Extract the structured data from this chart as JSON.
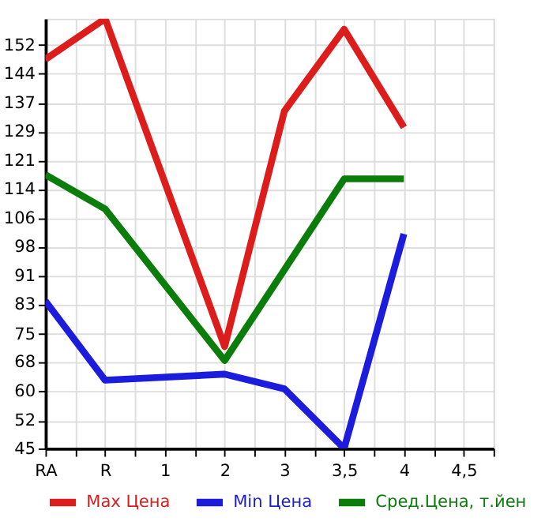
{
  "chart_data": {
    "type": "line",
    "categories": [
      "RA",
      "R",
      "1",
      "2",
      "3",
      "3,5",
      "4",
      "4,5"
    ],
    "series": [
      {
        "name": "Max Цена",
        "color": "#dd1c1c",
        "values": [
          148.2,
          159,
          null,
          72,
          134.5,
          156.2,
          130.2,
          null
        ]
      },
      {
        "name": "Min Цена",
        "color": "#1c1cdd",
        "values": [
          84.1,
          63.1,
          null,
          64.7,
          60.8,
          45,
          101.9,
          null
        ]
      },
      {
        "name": "Сред.Цена, т.йен",
        "color": "#0a7d0a",
        "values": [
          117.6,
          108.5,
          null,
          68.3,
          92.4,
          116.5,
          116.5,
          null
        ]
      }
    ],
    "ylim": [
      45,
      159
    ],
    "yticks": [
      45,
      {
        "value": 52.4,
        "label": "52"
      },
      {
        "value": 60.29,
        "label": "60"
      },
      {
        "value": 67.93,
        "label": "68"
      },
      {
        "value": 75.4,
        "label": "75"
      },
      {
        "value": 83.21,
        "label": "83"
      },
      {
        "value": 90.86,
        "label": "91"
      },
      {
        "value": 98.5,
        "label": "98"
      },
      {
        "value": 106.14,
        "label": "106"
      },
      {
        "value": 113.79,
        "label": "114"
      },
      {
        "value": 121.43,
        "label": "121"
      },
      {
        "value": 129.07,
        "label": "129"
      },
      {
        "value": 136.71,
        "label": "137"
      },
      {
        "value": 144.36,
        "label": "144"
      },
      152
    ],
    "grid": true,
    "legend": "bottom",
    "marker": "none",
    "line_style": "solid"
  }
}
